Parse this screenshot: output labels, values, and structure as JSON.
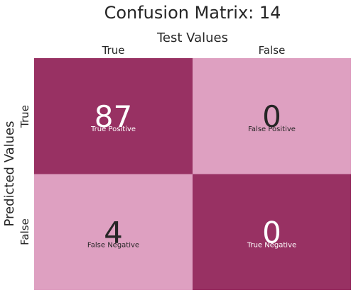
{
  "chart_data": {
    "type": "heatmap",
    "title": "Confusion Matrix: 14",
    "xlabel": "Test Values",
    "ylabel": "Predicted Values",
    "x_categories": [
      "True",
      "False"
    ],
    "y_categories": [
      "True",
      "False"
    ],
    "values": [
      [
        87,
        0
      ],
      [
        4,
        0
      ]
    ],
    "cell_labels": [
      [
        "True Positive",
        "False Positive"
      ],
      [
        "False Negative",
        "True Negative"
      ]
    ],
    "colors": {
      "dark": "#983163",
      "light": "#dea0c1",
      "text_on_dark": "#ffffff",
      "text_on_light": "#262626"
    },
    "cell_color_pattern": [
      [
        "dark",
        "light"
      ],
      [
        "light",
        "dark"
      ]
    ],
    "colorbar": false
  }
}
